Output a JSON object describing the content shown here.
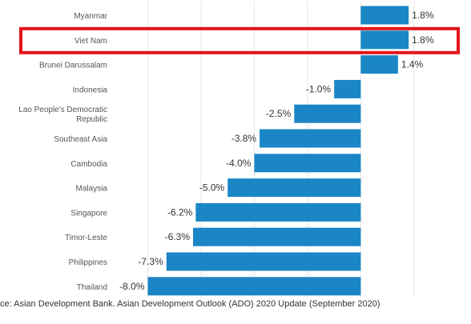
{
  "chart_data": {
    "type": "bar",
    "orientation": "horizontal",
    "categories": [
      "Myanmar",
      "Viet Nam",
      "Brunei Darussalam",
      "Indonesia",
      "Lao People's Democratic Republic",
      "Southeast Asia",
      "Cambodia",
      "Malaysia",
      "Singapore",
      "Timor-Leste",
      "Philippines",
      "Thailand"
    ],
    "category_lines": [
      [
        "Myanmar"
      ],
      [
        "Viet Nam"
      ],
      [
        "Brunei Darussalam"
      ],
      [
        "Indonesia"
      ],
      [
        "Lao People's Democratic",
        "Republic"
      ],
      [
        "Southeast Asia"
      ],
      [
        "Cambodia"
      ],
      [
        "Malaysia"
      ],
      [
        "Singapore"
      ],
      [
        "Timor-Leste"
      ],
      [
        "Philippines"
      ],
      [
        "Thailand"
      ]
    ],
    "values": [
      1.8,
      1.8,
      1.4,
      -1.0,
      -2.5,
      -3.8,
      -4.0,
      -5.0,
      -6.2,
      -6.3,
      -7.3,
      -8.0
    ],
    "value_labels": [
      "1.8%",
      "1.8%",
      "1.4%",
      "-1.0%",
      "-2.5%",
      "-3.8%",
      "-4.0%",
      "-5.0%",
      "-6.2%",
      "-6.3%",
      "-7.3%",
      "-8.0%"
    ],
    "xlim": [
      -9.4,
      3.6
    ],
    "grid": true,
    "bar_color": "#1a86c6",
    "highlight": {
      "category": "Viet Nam",
      "color": "#e3151a"
    }
  },
  "source_note": "ce: Asian Development Bank. Asian Development Outlook (ADO) 2020 Update (September 2020)"
}
